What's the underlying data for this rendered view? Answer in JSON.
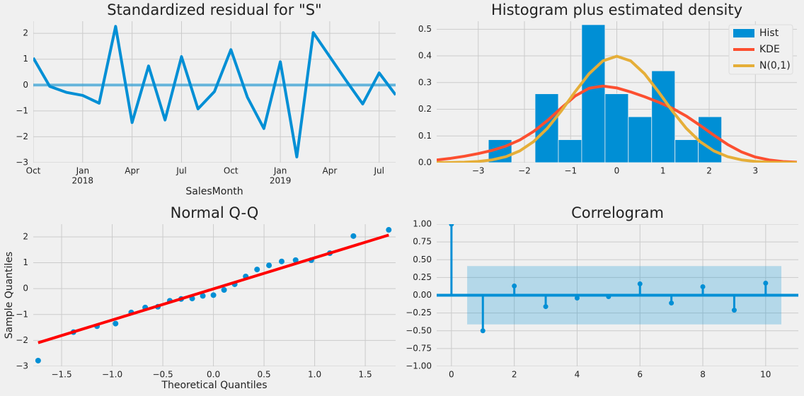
{
  "chart_data": [
    {
      "type": "line",
      "title": "Standardized residual for \"S\"",
      "xlabel": "SalesMonth",
      "x": [
        "2017-10",
        "2017-11",
        "2017-12",
        "2018-01",
        "2018-02",
        "2018-03",
        "2018-04",
        "2018-05",
        "2018-06",
        "2018-07",
        "2018-08",
        "2018-09",
        "2018-10",
        "2018-11",
        "2018-12",
        "2019-01",
        "2019-02",
        "2019-03",
        "2019-04",
        "2019-05",
        "2019-06",
        "2019-07",
        "2019-08"
      ],
      "series": [
        {
          "color": "#008fd5",
          "values": [
            1.05,
            -0.05,
            -0.28,
            -0.4,
            -0.7,
            2.27,
            -1.45,
            0.74,
            -1.35,
            1.1,
            -0.92,
            -0.25,
            1.37,
            -0.47,
            -1.68,
            0.9,
            -2.78,
            2.03,
            1.1,
            0.17,
            -0.73,
            0.47,
            -0.38
          ]
        }
      ],
      "hline": {
        "y": 0,
        "color": "#008fd5",
        "alpha": 0.55
      },
      "ylim": [
        -3,
        2.47
      ],
      "yticks": [
        {
          "value": -3,
          "label": "−3"
        },
        {
          "value": -2,
          "label": "−2"
        },
        {
          "value": -1,
          "label": "−1"
        },
        0,
        1,
        2
      ],
      "xticks": [
        {
          "value": "2017-10",
          "label": "Oct"
        },
        {
          "value": "2018-01",
          "label": "Jan",
          "sublabel": "2018"
        },
        {
          "value": "2018-04",
          "label": "Apr"
        },
        {
          "value": "2018-07",
          "label": "Jul"
        },
        {
          "value": "2018-10",
          "label": "Oct"
        },
        {
          "value": "2019-01",
          "label": "Jan",
          "sublabel": "2019"
        },
        {
          "value": "2019-04",
          "label": "Apr"
        },
        {
          "value": "2019-07",
          "label": "Jul"
        }
      ],
      "grid": true
    },
    {
      "type": "histogram",
      "title": "Histogram plus estimated density",
      "name": "Hist",
      "color": "#008fd5",
      "bins": [
        -2.78,
        -2.275,
        -1.77,
        -1.265,
        -0.76,
        -0.255,
        0.25,
        0.755,
        1.26,
        1.765,
        2.27
      ],
      "values": [
        0.086,
        0,
        0.258,
        0.086,
        0.517,
        0.258,
        0.172,
        0.344,
        0.086,
        0.172
      ],
      "density_x": [
        -3.9,
        -3.6,
        -3.3,
        -3.0,
        -2.7,
        -2.4,
        -2.1,
        -1.8,
        -1.5,
        -1.2,
        -0.9,
        -0.6,
        -0.3,
        0,
        0.3,
        0.6,
        0.9,
        1.2,
        1.5,
        1.8,
        2.1,
        2.4,
        2.7,
        3.0,
        3.3,
        3.6,
        3.9
      ],
      "series": [
        {
          "name": "KDE",
          "color": "#fc4f30",
          "values": [
            0.01,
            0.016,
            0.024,
            0.034,
            0.046,
            0.062,
            0.085,
            0.117,
            0.158,
            0.205,
            0.25,
            0.279,
            0.287,
            0.28,
            0.265,
            0.247,
            0.227,
            0.204,
            0.175,
            0.14,
            0.103,
            0.068,
            0.04,
            0.021,
            0.01,
            0.004,
            0.0015
          ]
        },
        {
          "name": "N(0,1)",
          "color": "#e5ae38",
          "values": [
            0.0002,
            0.0006,
            0.0017,
            0.0044,
            0.0104,
            0.0224,
            0.044,
            0.079,
            0.1295,
            0.1942,
            0.2661,
            0.3332,
            0.3814,
            0.3989,
            0.3814,
            0.3332,
            0.2661,
            0.1942,
            0.1295,
            0.079,
            0.044,
            0.0224,
            0.0104,
            0.0044,
            0.0017,
            0.0006,
            0.0002
          ]
        }
      ],
      "legend": "upper right",
      "xlim": [
        -3.9,
        3.9
      ],
      "xticks": [
        {
          "value": -3,
          "label": "−3"
        },
        {
          "value": -2,
          "label": "−2"
        },
        {
          "value": -1,
          "label": "−1"
        },
        0,
        1,
        2,
        3
      ],
      "ylim": [
        0,
        0.53
      ],
      "yticks": [
        {
          "value": 0,
          "label": "0.0"
        },
        0.1,
        0.2,
        0.3,
        0.4,
        0.5
      ],
      "grid": true
    },
    {
      "type": "scatter",
      "title": "Normal Q-Q",
      "xlabel": "Theoretical Quantiles",
      "ylabel": "Sample Quantiles",
      "color": "#008fd5",
      "x": [
        -1.732,
        -1.383,
        -1.15,
        -0.967,
        -0.812,
        -0.674,
        -0.549,
        -0.431,
        -0.319,
        -0.21,
        -0.105,
        0,
        0.105,
        0.21,
        0.319,
        0.431,
        0.549,
        0.674,
        0.812,
        0.967,
        1.15,
        1.383,
        1.732
      ],
      "values": [
        -2.78,
        -1.68,
        -1.45,
        -1.35,
        -0.92,
        -0.73,
        -0.7,
        -0.47,
        -0.4,
        -0.38,
        -0.28,
        -0.25,
        -0.05,
        0.17,
        0.47,
        0.74,
        0.9,
        1.05,
        1.1,
        1.1,
        1.37,
        2.03,
        2.27
      ],
      "fit_line": {
        "color": "#ff0000",
        "x": [
          -1.732,
          1.732
        ],
        "y": [
          -2.09,
          2.07
        ]
      },
      "xlim": [
        -1.78,
        1.8
      ],
      "xticks": [
        {
          "value": -1.5,
          "label": "−1.5"
        },
        {
          "value": -1,
          "label": "−1.0"
        },
        {
          "value": -0.5,
          "label": "−0.5"
        },
        {
          "value": 0,
          "label": "0.0"
        },
        0.5,
        {
          "value": 1,
          "label": "1.0"
        },
        1.5
      ],
      "ylim": [
        -3,
        2.49
      ],
      "yticks": [
        {
          "value": -3,
          "label": "−3"
        },
        {
          "value": -2,
          "label": "−2"
        },
        {
          "value": -1,
          "label": "−1"
        },
        0,
        1,
        2
      ],
      "grid": true
    },
    {
      "type": "stem",
      "title": "Correlogram",
      "color": "#008fd5",
      "x": [
        0,
        1,
        2,
        3,
        4,
        5,
        6,
        7,
        8,
        9,
        10
      ],
      "values": [
        1.0,
        -0.5,
        0.13,
        -0.16,
        -0.04,
        -0.02,
        0.16,
        -0.11,
        0.12,
        -0.21,
        0.17
      ],
      "confidence": {
        "color": "#008fd5",
        "alpha": 0.25,
        "x": [
          0.5,
          10.5
        ],
        "lower": [
          -0.41,
          -0.41
        ],
        "upper": [
          0.41,
          0.41
        ]
      },
      "xlim": [
        -0.47,
        11.04
      ],
      "xticks": [
        0,
        2,
        4,
        6,
        8,
        10
      ],
      "ylim": [
        -1,
        1
      ],
      "yticks": [
        {
          "value": -1,
          "label": "−1.00"
        },
        {
          "value": -0.75,
          "label": "−0.75"
        },
        {
          "value": -0.5,
          "label": "−0.50"
        },
        {
          "value": -0.25,
          "label": "−0.25"
        },
        {
          "value": 0,
          "label": "0.00"
        },
        {
          "value": 0.25,
          "label": "0.25"
        },
        {
          "value": 0.5,
          "label": "0.50"
        },
        {
          "value": 0.75,
          "label": "0.75"
        },
        {
          "value": 1,
          "label": "1.00"
        }
      ],
      "grid": true
    }
  ]
}
